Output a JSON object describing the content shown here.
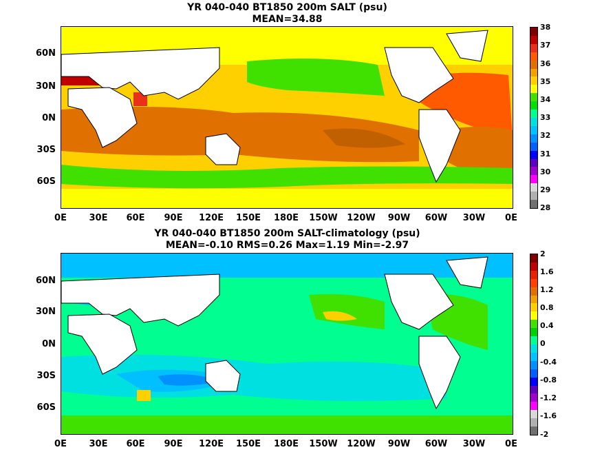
{
  "top": {
    "title": "YR 040-040 BT1850 200m SALT (psu)",
    "subtitle": "MEAN=34.88",
    "colorbar_labels": [
      "38",
      "37",
      "36",
      "35",
      "34",
      "33",
      "32",
      "31",
      "30",
      "29",
      "28"
    ],
    "colorbar_colors": [
      "#800000",
      "#c00000",
      "#e8301a",
      "#ff5a00",
      "#e07000",
      "#f0a000",
      "#ffd000",
      "#ffff00",
      "#40e000",
      "#00e000",
      "#00ff90",
      "#00e0e0",
      "#00c0ff",
      "#0090ff",
      "#0060ff",
      "#0000ff",
      "#6000c0",
      "#a000d0",
      "#ff00ff",
      "#d8d8d8",
      "#b0b0b0",
      "#707070"
    ]
  },
  "bottom": {
    "title": "YR 040-040 BT1850 200m SALT-climatology (psu)",
    "subtitle": "MEAN=-0.10   RMS=0.26   Max=1.19   Min=-2.97",
    "colorbar_labels": [
      "2",
      "1.6",
      "1.2",
      "0.8",
      "0.4",
      "0",
      "-0.4",
      "-0.8",
      "-1.2",
      "-1.6",
      "-2"
    ],
    "colorbar_colors": [
      "#800000",
      "#c00000",
      "#e82000",
      "#ff4000",
      "#e07000",
      "#f0a000",
      "#ffd000",
      "#ffff00",
      "#40e000",
      "#00d000",
      "#00ff90",
      "#00e0e0",
      "#00c0ff",
      "#0090ff",
      "#0060ff",
      "#0000ff",
      "#6000c0",
      "#a000d0",
      "#ff00ff",
      "#d8d8d8",
      "#b0b0b0",
      "#707070"
    ]
  },
  "lat_labels": [
    "60N",
    "30N",
    "0N",
    "30S",
    "60S"
  ],
  "lon_labels": [
    "0E",
    "30E",
    "60E",
    "90E",
    "120E",
    "150E",
    "180E",
    "150W",
    "120W",
    "90W",
    "60W",
    "30W",
    "0E"
  ]
}
